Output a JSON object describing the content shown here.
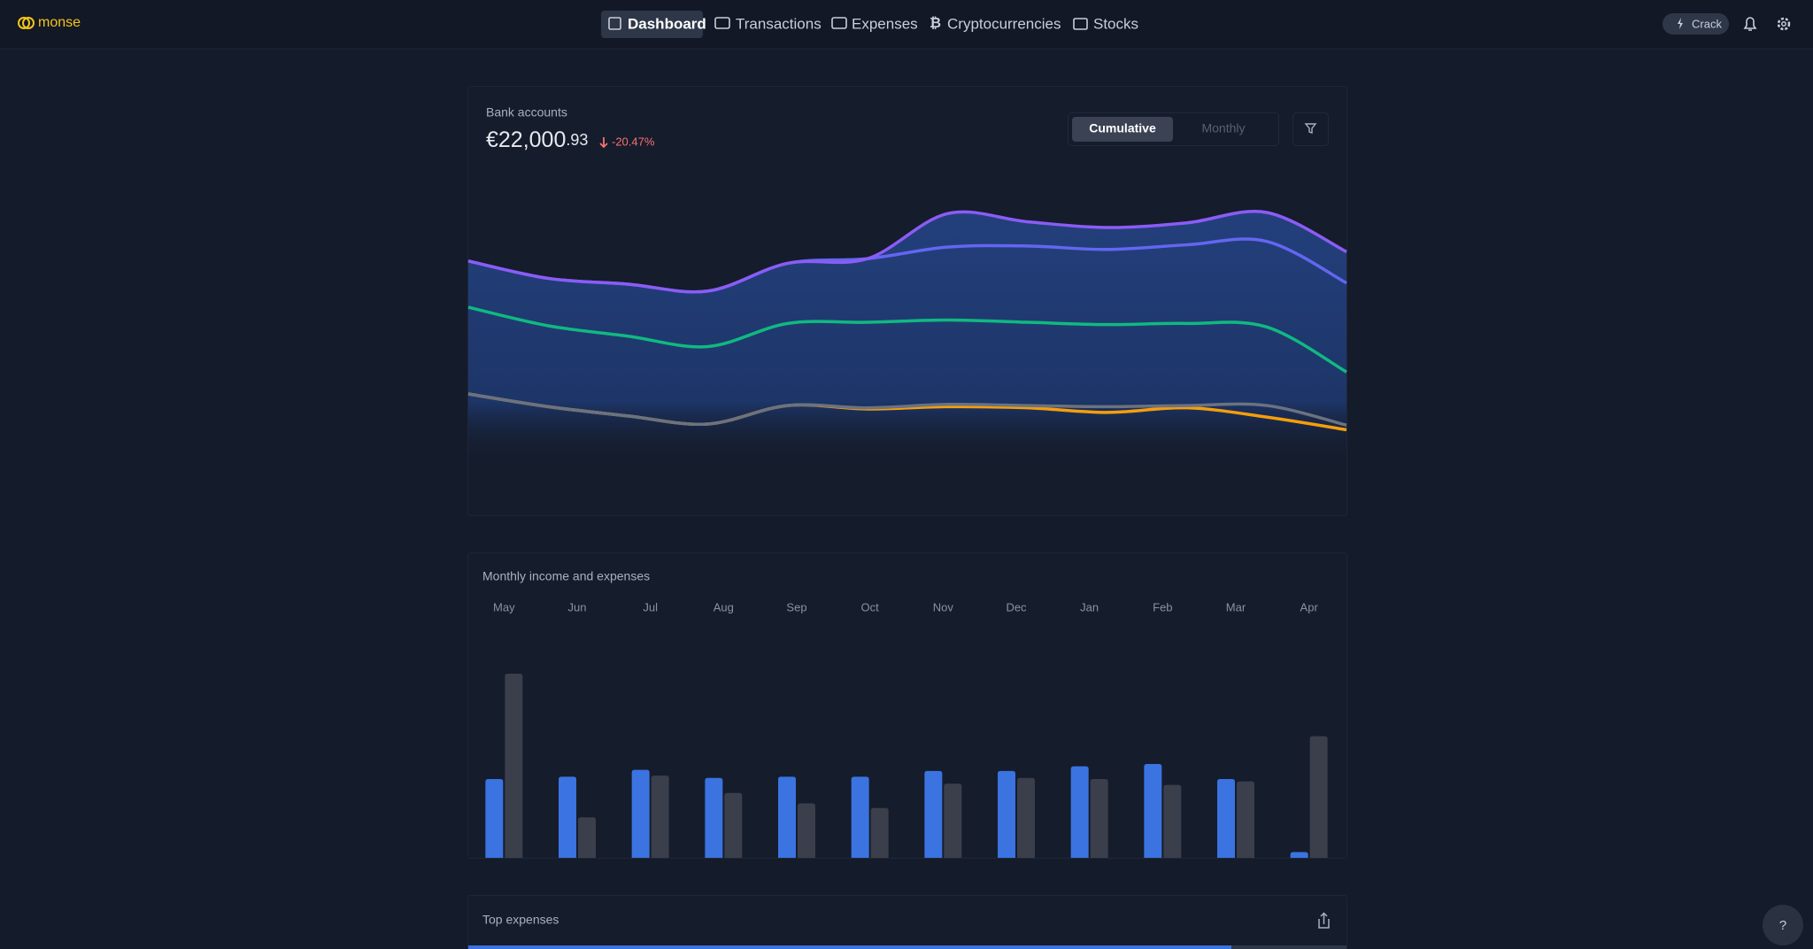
{
  "nav": {
    "brand": "monse",
    "items": [
      "Dashboard",
      "Transactions",
      "Expenses",
      "Cryptocurrencies",
      "Stocks"
    ],
    "upgrade": "Crack"
  },
  "bank_accounts": {
    "title": "Bank accounts",
    "balance_whole": "€22,000",
    "balance_cents": ".93",
    "change": "-20.47%",
    "toggle": [
      "Cumulative",
      "Monthly"
    ],
    "chart_data": {
      "type": "line",
      "series": [
        {
          "color": "#8b5cf6",
          "values": [
            164,
            149,
            144,
            138,
            162,
            166,
            205,
            198,
            193,
            197,
            206,
            172
          ]
        },
        {
          "color": "#6366f1",
          "values": [
            164,
            149,
            144,
            138,
            162,
            166,
            176,
            177,
            174,
            178,
            181,
            145
          ]
        },
        {
          "color": "#10b981",
          "values": [
            124,
            108,
            99,
            90,
            110,
            111,
            113,
            111,
            109,
            110,
            107,
            68
          ]
        },
        {
          "color": "#6b7280",
          "values": [
            49,
            38,
            30,
            23,
            39,
            37,
            40,
            39,
            38,
            39,
            39,
            22
          ]
        },
        {
          "color": "#f59e0b",
          "values": [
            49,
            38,
            30,
            23,
            39,
            36,
            38,
            37,
            33,
            37,
            29,
            18
          ]
        }
      ]
    }
  },
  "monthly": {
    "chart_data": {
      "type": "bar",
      "title": "Monthly income and expenses",
      "categories": [
        "May",
        "Jun",
        "Jul",
        "Aug",
        "Sep",
        "Oct",
        "Nov",
        "Dec",
        "Jan",
        "Feb",
        "Mar",
        "Apr"
      ],
      "series": [
        {
          "color": "#3b73e0",
          "values": [
            68,
            70,
            76,
            69,
            70,
            70,
            75,
            75,
            79,
            81,
            68,
            5
          ]
        },
        {
          "color": "#3a3f4b",
          "values": [
            159,
            35,
            71,
            56,
            47,
            43,
            64,
            69,
            68,
            63,
            66,
            105
          ]
        }
      ]
    }
  },
  "top_expenses": {
    "title": "Top expenses"
  },
  "help": "?"
}
